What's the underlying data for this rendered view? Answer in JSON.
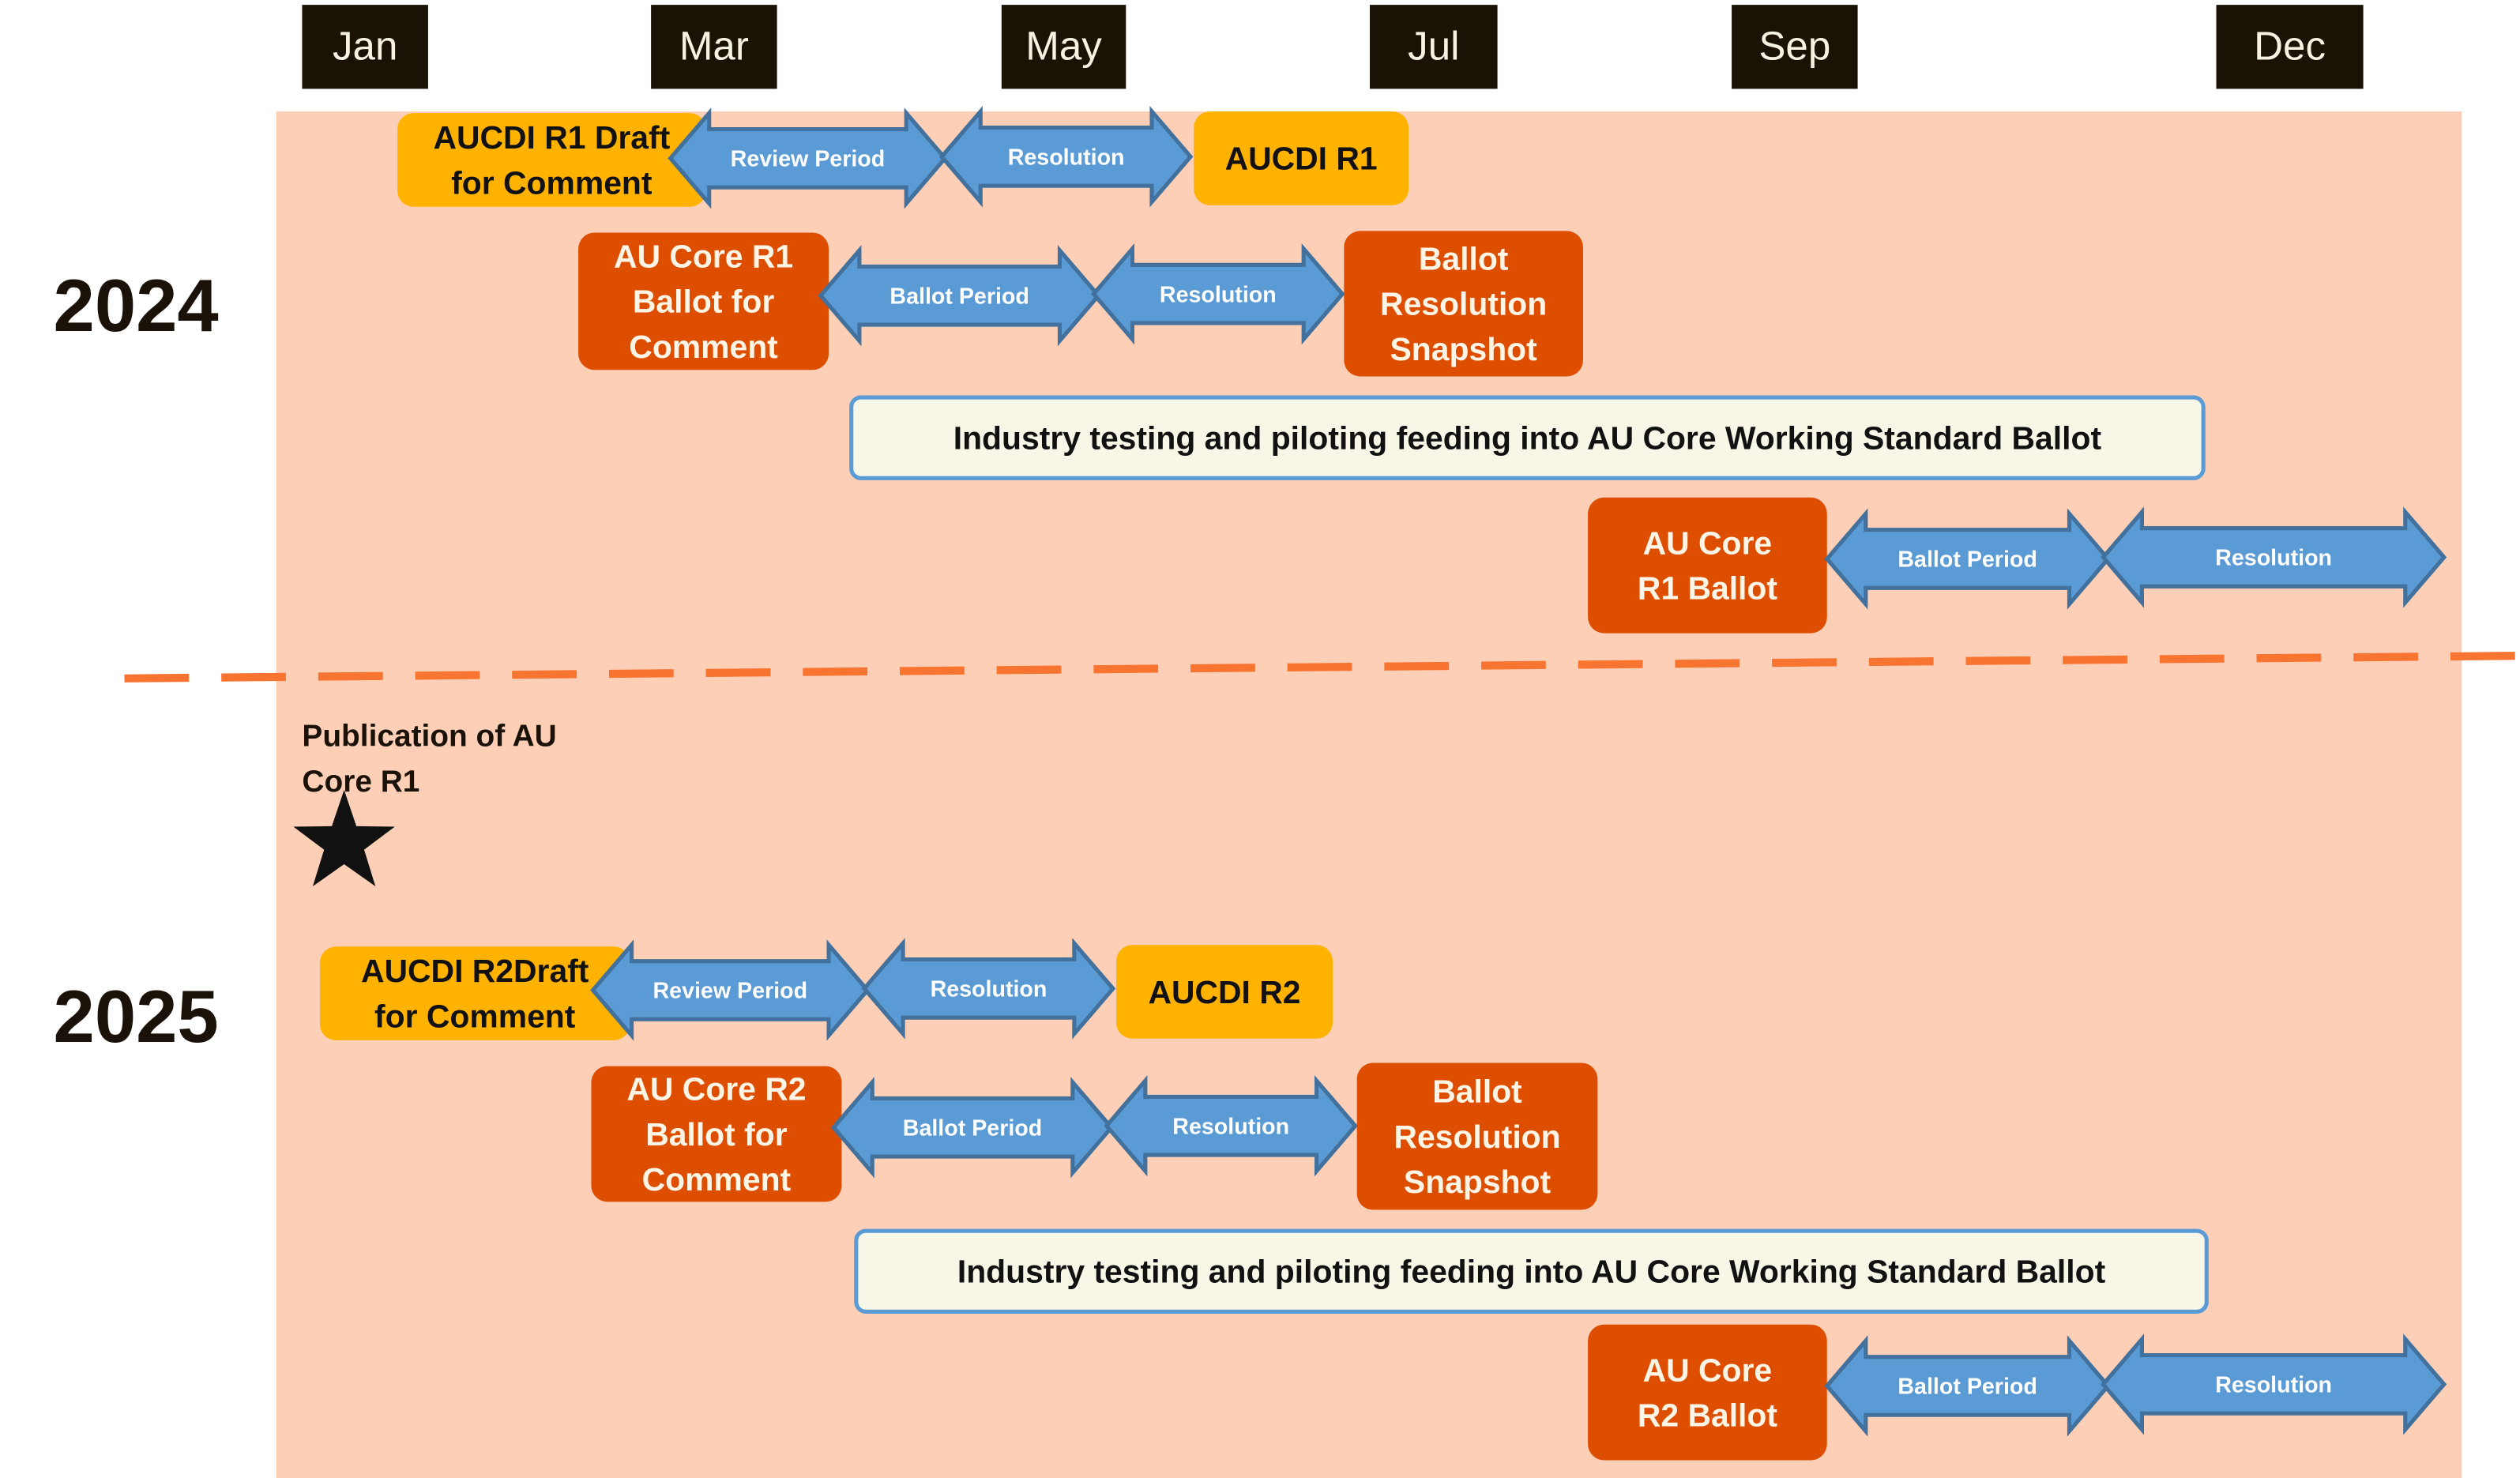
{
  "colors": {
    "background_band": "#FDCFB7",
    "month_box": "#1A1204",
    "aucdi_box": "#FFB300",
    "core_box": "#DD4E00",
    "arrow_fill": "#5B9BD5",
    "arrow_stroke": "#41719C",
    "industry_fill": "#F8F6E6",
    "divider": "#F87431"
  },
  "months": [
    "Jan",
    "Mar",
    "May",
    "Jul",
    "Sep",
    "Dec"
  ],
  "years": [
    "2024",
    "2025"
  ],
  "publication": {
    "lines": [
      "Publication of AU",
      "Core R1"
    ],
    "icon": "star-icon"
  },
  "y2024": {
    "aucdi": [
      "AUCDI R1 Draft",
      "for Comment"
    ],
    "aucdi_arrows": [
      "Review Period",
      "Resolution"
    ],
    "aucdi_result": [
      "AUCDI R1"
    ],
    "core": [
      "AU Core R1",
      "Ballot for",
      "Comment"
    ],
    "core_arrows": [
      "Ballot Period",
      "Resolution"
    ],
    "core_result": [
      "Ballot",
      "Resolution",
      "Snapshot"
    ],
    "industry": "Industry testing and piloting feeding into AU Core Working Standard Ballot",
    "ballot": [
      "AU Core",
      "R1 Ballot"
    ],
    "ballot_arrows": [
      "Ballot Period",
      "Resolution"
    ]
  },
  "y2025": {
    "aucdi": [
      "AUCDI R2Draft",
      "for Comment"
    ],
    "aucdi_arrows": [
      "Review Period",
      "Resolution"
    ],
    "aucdi_result": [
      "AUCDI R2"
    ],
    "core": [
      "AU Core R2",
      "Ballot for",
      "Comment"
    ],
    "core_arrows": [
      "Ballot Period",
      "Resolution"
    ],
    "core_result": [
      "Ballot",
      "Resolution",
      "Snapshot"
    ],
    "industry": "Industry testing and piloting feeding into AU Core Working Standard Ballot",
    "ballot": [
      "AU Core",
      "R2 Ballot"
    ],
    "ballot_arrows": [
      "Ballot Period",
      "Resolution"
    ]
  }
}
